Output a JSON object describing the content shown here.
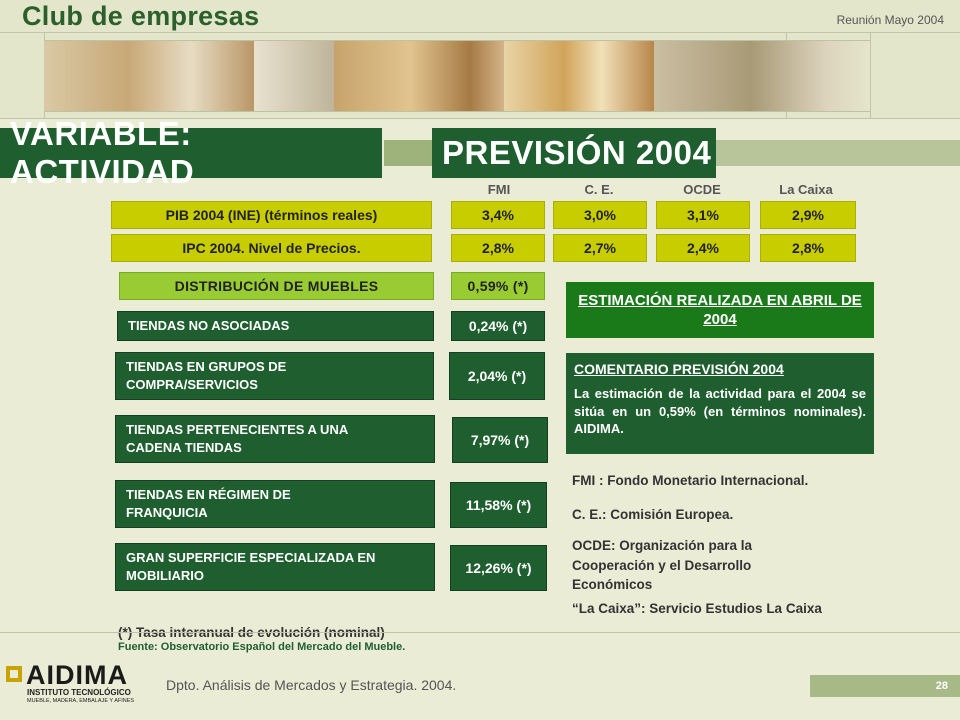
{
  "header": {
    "brand": "Club de empresas",
    "meeting": "Reunión Mayo 2004"
  },
  "titles": {
    "left": "VARIABLE: ACTIVIDAD",
    "right": "PREVISIÓN 2004"
  },
  "sources": [
    "FMI",
    "C. E.",
    "OCDE",
    "La Caixa"
  ],
  "macro_rows": [
    {
      "label": "PIB 2004 (INE) (términos reales)",
      "values": [
        "3,4%",
        "3,0%",
        "3,1%",
        "2,9%"
      ]
    },
    {
      "label": "IPC 2004. Nivel de Precios.",
      "values": [
        "2,8%",
        "2,7%",
        "2,4%",
        "2,8%"
      ]
    }
  ],
  "distribution": {
    "label": "DISTRIBUCIÓN DE MUEBLES",
    "value": "0,59% (*)"
  },
  "channels": [
    {
      "label": "TIENDAS NO ASOCIADAS",
      "value": "0,24% (*)"
    },
    {
      "label": "TIENDAS EN GRUPOS DE COMPRA/SERVICIOS",
      "value": "2,04% (*)"
    },
    {
      "label": "TIENDAS PERTENECIENTES A UNA CADENA TIENDAS",
      "value": "7,97% (*)"
    },
    {
      "label": "TIENDAS EN RÉGIMEN DE FRANQUICIA",
      "value": "11,58% (*)"
    },
    {
      "label": "GRAN SUPERFICIE ESPECIALIZADA EN MOBILIARIO",
      "value": "12,26% (*)"
    }
  ],
  "estimate": "ESTIMACIÓN REALIZADA EN ABRIL DE 2004",
  "comment": {
    "title": "COMENTARIO PREVISIÓN 2004",
    "text": "La estimación de la actividad para el 2004 se sitúa en un 0,59% (en términos nominales). AIDIMA."
  },
  "glossary": [
    "FMI : Fondo Monetario Internacional.",
    "C. E.:  Comisión Europea.",
    "OCDE: Organización para la Cooperación y el Desarrollo Económicos",
    "“La Caixa”: Servicio Estudios La Caixa"
  ],
  "notes": {
    "asterisk": "(*) Tasa interanual de evolución (nominal)",
    "source": "Fuente: Observatorio Español del Mercado del Mueble."
  },
  "footer": {
    "logo": "AIDIMA",
    "logo_sub1": "INSTITUTO TECNOLÓGICO",
    "logo_sub2": "MUEBLE, MADERA, EMBALAJE Y AFINES",
    "dept": "Dpto. Análisis de Mercados y Estrategia. 2004.",
    "page": "28"
  },
  "colors": {
    "dark_green": "#1f5f2f",
    "yellow_green": "#c8cd00",
    "light_green": "#99cc33",
    "estimate_green": "#1a7a1a",
    "background": "#eaecd6"
  }
}
